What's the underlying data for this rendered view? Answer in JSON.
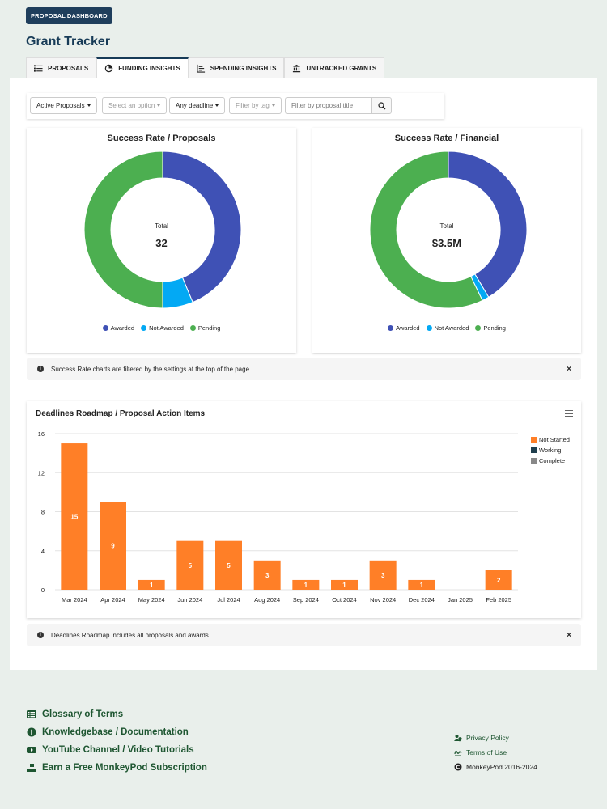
{
  "header": {
    "badge": "PROPOSAL DASHBOARD",
    "title": "Grant Tracker"
  },
  "tabs": [
    {
      "label": "PROPOSALS",
      "icon": "list-icon"
    },
    {
      "label": "FUNDING INSIGHTS",
      "icon": "pie-chart-icon",
      "active": true
    },
    {
      "label": "SPENDING INSIGHTS",
      "icon": "bar-chart-icon"
    },
    {
      "label": "UNTRACKED GRANTS",
      "icon": "bank-icon"
    }
  ],
  "filters": {
    "status": "Active Proposals",
    "option_placeholder": "Select an option",
    "deadline": "Any deadline",
    "tag_placeholder": "Filter by tag",
    "search_placeholder": "Filter by proposal title"
  },
  "colors": {
    "awarded": "#3f51b5",
    "not_awarded": "#03a9f4",
    "pending": "#4caf50",
    "not_started": "#ff7f27",
    "working": "#1f3e4d",
    "complete": "#888888"
  },
  "chart_data": [
    {
      "type": "pie",
      "title": "Success Rate / Proposals",
      "center_label": "Total",
      "center_value": "32",
      "categories": [
        "Awarded",
        "Not Awarded",
        "Pending"
      ],
      "values": [
        14,
        2,
        16
      ]
    },
    {
      "type": "pie",
      "title": "Success Rate / Financial",
      "center_label": "Total",
      "center_value": "$3.5M",
      "categories": [
        "Awarded",
        "Not Awarded",
        "Pending"
      ],
      "values": [
        1.45,
        0.05,
        2.0
      ]
    },
    {
      "type": "bar",
      "title": "Deadlines Roadmap / Proposal Action Items",
      "categories": [
        "Mar 2024",
        "Apr 2024",
        "May 2024",
        "Jun 2024",
        "Jul 2024",
        "Aug 2024",
        "Sep 2024",
        "Oct 2024",
        "Nov 2024",
        "Dec 2024",
        "Jan 2025",
        "Feb 2025"
      ],
      "series": [
        {
          "name": "Not Started",
          "values": [
            15,
            9,
            1,
            5,
            5,
            3,
            1,
            1,
            3,
            1,
            0,
            2
          ]
        },
        {
          "name": "Working",
          "values": [
            0,
            0,
            0,
            0,
            0,
            0,
            0,
            0,
            0,
            0,
            0,
            0
          ]
        },
        {
          "name": "Complete",
          "values": [
            0,
            0,
            0,
            0,
            0,
            0,
            0,
            0,
            0,
            0,
            0,
            0
          ]
        }
      ],
      "ylim": [
        0,
        16
      ],
      "yticks": [
        0,
        4,
        8,
        12,
        16
      ],
      "legend": "right"
    }
  ],
  "notes": {
    "success_rate": "Success Rate charts are filtered by the settings at the top of the page.",
    "roadmap": "Deadlines Roadmap includes all proposals and awards.",
    "close": "×",
    "info": "i"
  },
  "footer": {
    "links": [
      {
        "label": "Glossary of Terms",
        "icon": "list-icon"
      },
      {
        "label": "Knowledgebase / Documentation",
        "icon": "info-icon"
      },
      {
        "label": "YouTube Channel / Video Tutorials",
        "icon": "youtube-icon"
      },
      {
        "label": "Earn a Free MonkeyPod Subscription",
        "icon": "gift-hand-icon"
      }
    ],
    "privacy": "Privacy Policy",
    "terms": "Terms of Use",
    "copyright": "MonkeyPod 2016-2024"
  }
}
